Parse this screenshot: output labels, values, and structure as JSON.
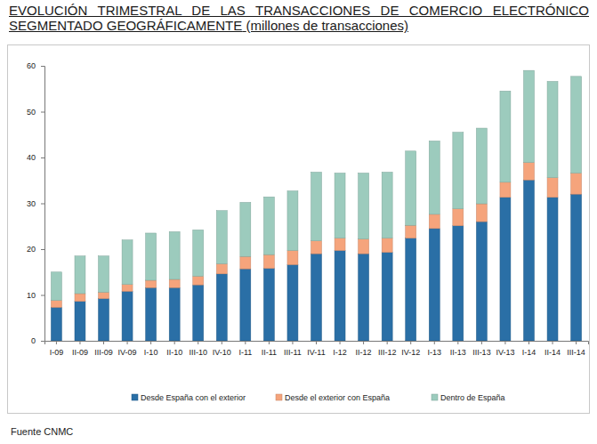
{
  "chart_data": {
    "type": "bar",
    "title": "EVOLUCIÓN TRIMESTRAL DE LAS TRANSACCIONES DE COMERCIO ELECTRÓNICO SEGMENTADO GEOGRÁFICAMENTE",
    "subtitle": "(millones de transacciones)",
    "source": "Fuente CNMC",
    "categories": [
      "I-09",
      "II-09",
      "III-09",
      "IV-09",
      "I-10",
      "II-10",
      "III-10",
      "IV-10",
      "I-11",
      "II-11",
      "III-11",
      "IV-11",
      "I-12",
      "II-12",
      "III-12",
      "IV-12",
      "I-13",
      "II-13",
      "III-13",
      "IV-13",
      "I-14",
      "II-14",
      "III-14"
    ],
    "series": [
      {
        "name": "Desde España con el exterior",
        "color": "#2a6fa6",
        "values": [
          7.3,
          8.6,
          9.2,
          10.8,
          11.6,
          11.6,
          12.2,
          14.6,
          15.7,
          15.8,
          16.6,
          19.0,
          19.7,
          19.0,
          19.3,
          22.4,
          24.5,
          25.1,
          26.0,
          31.3,
          35.1,
          31.3,
          32.0
        ]
      },
      {
        "name": "Desde el exterior con España",
        "color": "#f5a47c",
        "values": [
          1.5,
          1.7,
          1.4,
          1.5,
          1.6,
          1.8,
          1.9,
          2.2,
          2.7,
          3.0,
          3.1,
          2.8,
          2.7,
          3.2,
          3.1,
          2.8,
          3.1,
          3.7,
          3.9,
          3.3,
          3.8,
          4.3,
          4.6
        ]
      },
      {
        "name": "Dentro de España",
        "color": "#9ccbbd",
        "values": [
          6.2,
          8.2,
          7.9,
          9.7,
          10.3,
          10.4,
          10.1,
          11.6,
          11.8,
          12.6,
          13.0,
          15.0,
          14.2,
          14.4,
          14.4,
          16.2,
          16.0,
          16.7,
          16.5,
          19.9,
          20.1,
          21.0,
          21.1
        ]
      }
    ],
    "ylim": [
      0,
      60
    ],
    "yticks": [
      0,
      10,
      20,
      30,
      40,
      50,
      60
    ],
    "stacked": true,
    "grid": false,
    "legend": "bottom"
  }
}
